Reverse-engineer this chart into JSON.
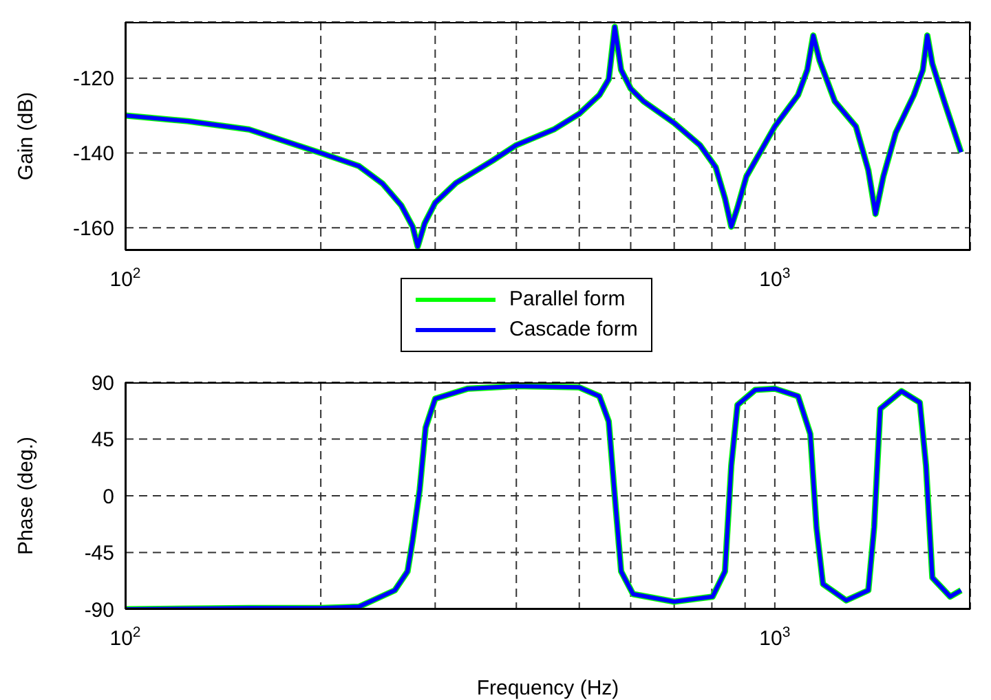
{
  "chart_data": [
    {
      "type": "line",
      "ylabel": "Gain (dB)",
      "legend": "bottom",
      "grid": true,
      "line_style": "solid",
      "marker": "none",
      "x": [
        100,
        125,
        155,
        200,
        229,
        249,
        266,
        277,
        282,
        289,
        300,
        323,
        368,
        400,
        457,
        500,
        537,
        555,
        567,
        580,
        600,
        628,
        700,
        767,
        811,
        838,
        857,
        876,
        904,
        1000,
        1086,
        1122,
        1146,
        1172,
        1237,
        1333,
        1393,
        1429,
        1469,
        1535,
        1637,
        1690,
        1717,
        1748,
        1823,
        1935
      ],
      "xlim": [
        100,
        2000
      ],
      "xticks": [
        {
          "value": 100,
          "label": "10$^{2}$"
        },
        {
          "value": 200,
          "label": null
        },
        {
          "value": 300,
          "label": null
        },
        {
          "value": 400,
          "label": null
        },
        {
          "value": 500,
          "label": null
        },
        {
          "value": 600,
          "label": null
        },
        {
          "value": 700,
          "label": null
        },
        {
          "value": 800,
          "label": null
        },
        {
          "value": 900,
          "label": null
        },
        {
          "value": 1000,
          "label": "10$^{3}$"
        }
      ],
      "log": "x",
      "ylim": [
        -166,
        -105
      ],
      "yticks": [
        -160,
        -140,
        -120
      ],
      "series": [
        {
          "name": "Parallel form",
          "color": "#00ff00",
          "values": [
            -130,
            -131.5,
            -133.7,
            -140,
            -143.5,
            -148.2,
            -154,
            -159.7,
            -165,
            -158.8,
            -153.3,
            -148,
            -142,
            -137.9,
            -133.7,
            -129.5,
            -124.5,
            -120.3,
            -106.3,
            -117.8,
            -122.8,
            -126.2,
            -132,
            -137.9,
            -143.8,
            -152.1,
            -159.7,
            -154.6,
            -146.3,
            -132.9,
            -124.5,
            -117.8,
            -108.6,
            -115.3,
            -126.2,
            -132.9,
            -144.6,
            -156.3,
            -146.3,
            -134.6,
            -124.5,
            -117.8,
            -108.6,
            -116.2,
            -126.2,
            -139.8
          ]
        },
        {
          "name": "Cascade form",
          "color": "#0000ff",
          "values": [
            -130,
            -131.5,
            -133.7,
            -140,
            -143.5,
            -148.2,
            -154,
            -159.7,
            -165,
            -158.8,
            -153.3,
            -148,
            -142,
            -137.9,
            -133.7,
            -129.5,
            -124.5,
            -120.3,
            -106.3,
            -117.8,
            -122.8,
            -126.2,
            -132,
            -137.9,
            -143.8,
            -152.1,
            -159.7,
            -154.6,
            -146.3,
            -132.9,
            -124.5,
            -117.8,
            -108.6,
            -115.3,
            -126.2,
            -132.9,
            -144.6,
            -156.3,
            -146.3,
            -134.6,
            -124.5,
            -117.8,
            -108.6,
            -116.2,
            -126.2,
            -139.8
          ]
        }
      ]
    },
    {
      "type": "line",
      "xlabel": "Frequency (Hz)",
      "ylabel": "Phase (deg.)",
      "grid": true,
      "line_style": "solid",
      "marker": "none",
      "x": [
        100,
        155,
        200,
        229,
        260,
        272,
        277,
        284,
        290,
        300,
        337,
        400,
        500,
        537,
        555,
        567,
        580,
        605,
        700,
        802,
        838,
        857,
        876,
        933,
        1000,
        1086,
        1134,
        1159,
        1186,
        1288,
        1393,
        1422,
        1453,
        1567,
        1672,
        1709,
        1748,
        1862,
        1935
      ],
      "xlim": [
        100,
        2000
      ],
      "xticks": [
        {
          "value": 100,
          "label": "10$^{2}$"
        },
        {
          "value": 200,
          "label": null
        },
        {
          "value": 300,
          "label": null
        },
        {
          "value": 400,
          "label": null
        },
        {
          "value": 500,
          "label": null
        },
        {
          "value": 600,
          "label": null
        },
        {
          "value": 700,
          "label": null
        },
        {
          "value": 800,
          "label": null
        },
        {
          "value": 900,
          "label": null
        },
        {
          "value": 1000,
          "label": "10$^{3}$"
        }
      ],
      "log": "x",
      "ylim": [
        -90,
        90
      ],
      "yticks": [
        -90,
        -45,
        0,
        45,
        90
      ],
      "series": [
        {
          "color": "#00ff00",
          "values": [
            -90,
            -89,
            -89,
            -88,
            -75,
            -60,
            -35,
            5,
            54,
            77,
            85,
            87,
            86,
            79,
            59,
            0,
            -60,
            -78,
            -84,
            -80,
            -60,
            24,
            72,
            84,
            85,
            79,
            49,
            -25,
            -70,
            -83,
            -75,
            -25,
            69,
            83,
            74,
            24,
            -65,
            -80,
            -75
          ]
        },
        {
          "color": "#0000ff",
          "values": [
            -90,
            -89,
            -89,
            -88,
            -75,
            -60,
            -35,
            5,
            54,
            77,
            85,
            87,
            86,
            79,
            59,
            0,
            -60,
            -78,
            -84,
            -80,
            -60,
            24,
            72,
            84,
            85,
            79,
            49,
            -25,
            -70,
            -83,
            -75,
            -25,
            69,
            83,
            74,
            24,
            -65,
            -80,
            -75
          ]
        }
      ]
    }
  ]
}
